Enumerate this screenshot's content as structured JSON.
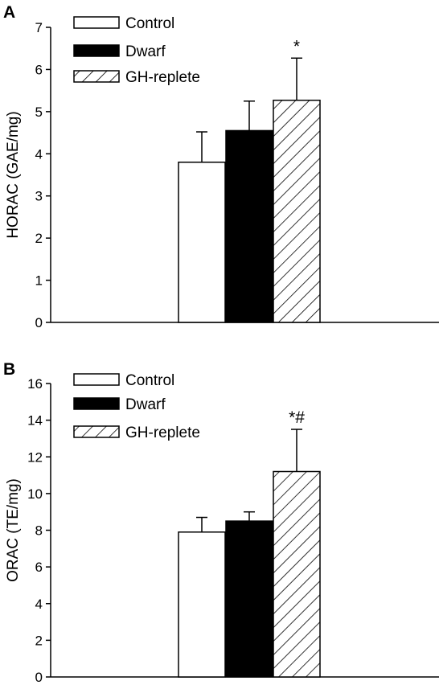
{
  "chart_data": [
    {
      "type": "bar",
      "panel_label": "A",
      "categories": [
        "Control",
        "Dwarf",
        "GH-replete"
      ],
      "values": [
        3.8,
        4.55,
        5.27
      ],
      "errors": [
        0.72,
        0.7,
        1.0
      ],
      "annotations": [
        "",
        "",
        "*"
      ],
      "ylabel": "HORAC (GAE/mg)",
      "xlabel": "",
      "ylim": [
        0,
        7
      ],
      "yticks": [
        0,
        1,
        2,
        3,
        4,
        5,
        6,
        7
      ],
      "legend": [
        "Control",
        "Dwarf",
        "GH-replete"
      ],
      "legend_position": "top-left",
      "grid": false
    },
    {
      "type": "bar",
      "panel_label": "B",
      "categories": [
        "Control",
        "Dwarf",
        "GH-replete"
      ],
      "values": [
        7.9,
        8.5,
        11.2
      ],
      "errors": [
        0.8,
        0.5,
        2.3
      ],
      "annotations": [
        "",
        "",
        "*#"
      ],
      "ylabel": "ORAC (TE/mg)",
      "xlabel": "",
      "ylim": [
        0,
        16
      ],
      "yticks": [
        0,
        2,
        4,
        6,
        8,
        10,
        12,
        14,
        16
      ],
      "legend": [
        "Control",
        "Dwarf",
        "GH-replete"
      ],
      "legend_position": "top-left",
      "grid": false
    }
  ],
  "series_styles": [
    {
      "fill": "#ffffff",
      "pattern": "none"
    },
    {
      "fill": "#000000",
      "pattern": "none"
    },
    {
      "fill": "#ffffff",
      "pattern": "diagonal-hatch"
    }
  ]
}
